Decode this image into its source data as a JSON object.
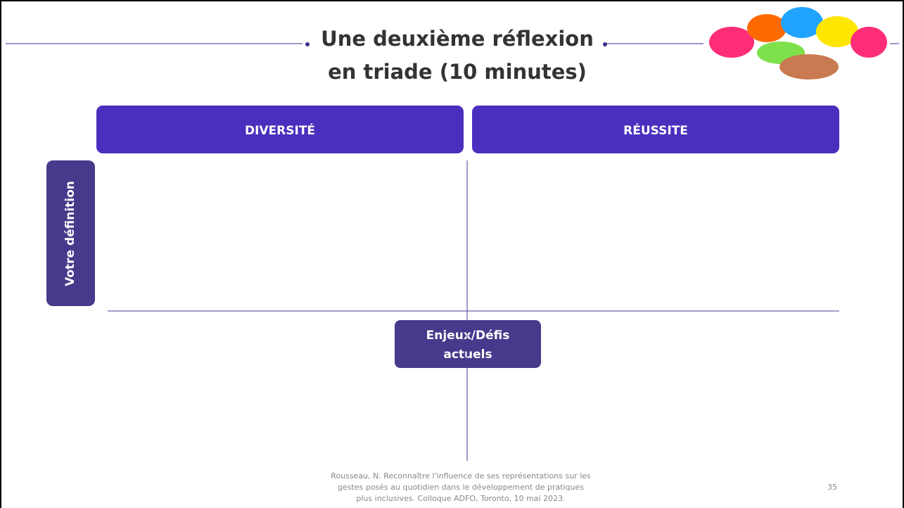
{
  "title_line1": "Une deuxième réflexion",
  "title_line2": "en triade (10 minutes)",
  "columns": [
    "DIVERSITÉ",
    "RÉUSSITE"
  ],
  "row_label": "Votre définition",
  "center_label_line1": "Enjeux/Défis",
  "center_label_line2": "actuels",
  "footer_lines": [
    "Rousseau, N.  Reconnaître l'influence de ses représentations sur les",
    "gestes posés au quotidien dans le développement de pratiques",
    "plus inclusives. Colloque ADFO, Toronto, 10 mai 2023."
  ],
  "page_number": "35"
}
